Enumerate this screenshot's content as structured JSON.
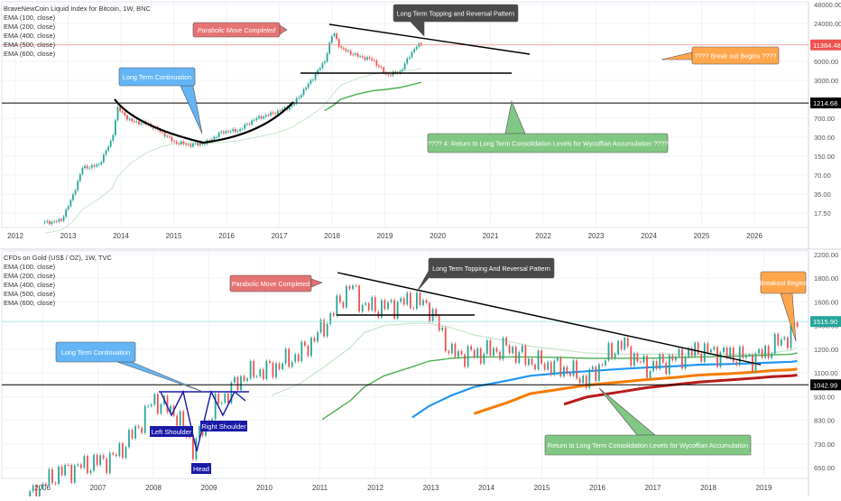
{
  "charts": [
    {
      "legend": [
        "BraveNewCoin Liquid Index for Bitcoin, 1W, BNC",
        "EMA (100, close)",
        "EMA (200, close)",
        "EMA (400, close)",
        "EMA (500, close)",
        "EMA (600, close)"
      ],
      "y_ticks": [
        "48000.00",
        "24000.00",
        "12000.00",
        "6000.00",
        "3000.00",
        "1500.00",
        "700.00",
        "300.00",
        "150.00",
        "70.00",
        "35.00",
        "17.50"
      ],
      "x_ticks": [
        "2012",
        "2013",
        "2014",
        "2015",
        "2016",
        "2017",
        "2018",
        "2019",
        "2020",
        "2021",
        "2022",
        "2023",
        "2024",
        "2025",
        "2026"
      ],
      "price_labels": [
        "11384.48",
        "1214.68"
      ],
      "annotations": {
        "parabolic": "Parabolic Move Completed",
        "topping": "Long Term Topping and Reversal Pattern",
        "continuation": "Long Term Continuation",
        "breakout": "???? Break out Begins ????",
        "return": "???? 4: Return to Long Term Consolidation Levels for Wycoffian Accumulation ????"
      }
    },
    {
      "legend": [
        "CFDs on Gold (US$ / OZ), 1W, TVC",
        "EMA (100, close)",
        "EMA (200, close)",
        "EMA (400, close)",
        "EMA (500, close)",
        "EMA (600, close)"
      ],
      "y_ticks": [
        "2200.00",
        "1800.00",
        "1600.00",
        "1400.00",
        "1200.00",
        "1100.00",
        "930.00",
        "830.00",
        "730.00",
        "650.00"
      ],
      "x_ticks": [
        "2006",
        "2007",
        "2008",
        "2009",
        "2010",
        "2011",
        "2012",
        "2013",
        "2014",
        "2015",
        "2016",
        "2017",
        "2018",
        "2019"
      ],
      "price_labels": [
        "1515.90",
        "1042.99"
      ],
      "annotations": {
        "parabolic": "Parabolic Move Completed",
        "topping": "Long Term Topping And Reversal Pattern",
        "continuation": "Long Term Continuation",
        "breakout": "Breakout Begins",
        "return": "Return to Long Term Consolidation Levels for Wycoffian Accumulation",
        "left_shoulder": "Left Shoulder",
        "head": "Head",
        "right_shoulder": "Right Shoulder"
      }
    }
  ],
  "colors": {
    "candle_up": "#26a69a",
    "candle_down": "#ef5350",
    "ema_light": "#c8e6c9",
    "ema_green": "#4caf50",
    "ema_blue": "#2196f3",
    "ema_orange": "#f57c00",
    "ema_red": "#b71c1c",
    "box_red": "#e57373",
    "box_dark": "#4a4a4a",
    "box_blue": "#64b5f6",
    "box_orange": "#ffa64d",
    "box_green": "#81c784",
    "pattern_blue": "#1a1aa6"
  },
  "chart_data": [
    {
      "type": "line",
      "title": "BraveNewCoin Liquid Index for Bitcoin, 1W, BNC",
      "y_scale": "log",
      "ylim": [
        10,
        60000
      ],
      "xlim": [
        2011.8,
        2026.8
      ],
      "x": [
        2012.6,
        2012.9,
        2013.1,
        2013.3,
        2013.6,
        2013.85,
        2013.95,
        2014.2,
        2014.5,
        2014.8,
        2015.0,
        2015.3,
        2015.6,
        2015.9,
        2016.2,
        2016.5,
        2016.9,
        2017.2,
        2017.5,
        2017.8,
        2017.96,
        2018.1,
        2018.4,
        2018.7,
        2018.95,
        2019.2,
        2019.5,
        2019.6
      ],
      "series": [
        {
          "name": "BraveNewCoin Liquid Index for Bitcoin, 1W, BNC",
          "values": [
            12,
            13,
            30,
            100,
            110,
            300,
            1000,
            600,
            550,
            380,
            270,
            240,
            260,
            400,
            420,
            650,
            850,
            1100,
            2500,
            6000,
            19000,
            10000,
            7500,
            6400,
            3600,
            4000,
            11000,
            11384
          ]
        },
        {
          "name": "EMA (100, close)",
          "values": [
            8,
            9,
            12,
            20,
            30,
            45,
            70,
            120,
            180,
            230,
            250,
            255,
            255,
            265,
            285,
            320,
            380,
            480,
            700,
            1100,
            1700,
            2400,
            3100,
            3700,
            4000,
            4100,
            4400,
            4600
          ]
        },
        {
          "name": "EMA (200, close)",
          "values": [
            null,
            null,
            null,
            null,
            null,
            null,
            null,
            null,
            null,
            null,
            null,
            null,
            null,
            null,
            null,
            null,
            null,
            null,
            null,
            900,
            1100,
            1400,
            1700,
            1950,
            2050,
            2200,
            2550,
            2700
          ]
        }
      ],
      "horizontal_levels": [
        11384.48,
        1214.68
      ]
    },
    {
      "type": "line",
      "title": "CFDs on Gold (US$ / OZ), 1W, TVC",
      "y_scale": "log",
      "ylim": [
        600,
        2300
      ],
      "xlim": [
        2005.5,
        2019.85
      ],
      "x": [
        2006.0,
        2006.5,
        2007.0,
        2007.5,
        2007.9,
        2008.2,
        2008.6,
        2008.9,
        2009.3,
        2009.8,
        2010.3,
        2010.8,
        2011.2,
        2011.7,
        2011.95,
        2012.3,
        2012.8,
        2013.1,
        2013.5,
        2013.9,
        2014.5,
        2014.9,
        2015.5,
        2015.9,
        2016.5,
        2016.95,
        2017.5,
        2017.9,
        2018.5,
        2018.9,
        2019.2,
        2019.55,
        2019.65
      ],
      "series": [
        {
          "name": "CFDs on Gold (US$ / OZ), 1W, TVC",
          "values": [
            540,
            620,
            650,
            680,
            800,
            960,
            880,
            720,
            920,
            1100,
            1150,
            1250,
            1450,
            1880,
            1650,
            1650,
            1720,
            1660,
            1250,
            1250,
            1300,
            1200,
            1150,
            1070,
            1340,
            1150,
            1220,
            1280,
            1240,
            1220,
            1300,
            1420,
            1515
          ]
        },
        {
          "name": "EMA (100, close)",
          "values": [
            null,
            null,
            null,
            null,
            null,
            null,
            null,
            null,
            null,
            null,
            980,
            1050,
            1150,
            1300,
            1420,
            1480,
            1500,
            1500,
            1460,
            1400,
            1350,
            1310,
            1280,
            1260,
            1250,
            1250,
            1250,
            1250,
            1250,
            1250,
            1260,
            1280,
            1300
          ]
        },
        {
          "name": "EMA (200, close)",
          "values": [
            null,
            null,
            null,
            null,
            null,
            null,
            null,
            null,
            null,
            null,
            null,
            null,
            850,
            950,
            1030,
            1100,
            1160,
            1200,
            1220,
            1230,
            1230,
            1230,
            1225,
            1220,
            1220,
            1220,
            1225,
            1230,
            1235,
            1240,
            1245,
            1250,
            1260
          ]
        },
        {
          "name": "EMA (400, close)",
          "values": [
            null,
            null,
            null,
            null,
            null,
            null,
            null,
            null,
            null,
            null,
            null,
            null,
            null,
            null,
            null,
            null,
            860,
            920,
            980,
            1030,
            1070,
            1100,
            1120,
            1130,
            1145,
            1155,
            1165,
            1175,
            1180,
            1185,
            1190,
            1195,
            1200
          ]
        },
        {
          "name": "EMA (500, close)",
          "values": [
            null,
            null,
            null,
            null,
            null,
            null,
            null,
            null,
            null,
            null,
            null,
            null,
            null,
            null,
            null,
            null,
            null,
            null,
            null,
            880,
            940,
            990,
            1020,
            1040,
            1060,
            1075,
            1090,
            1105,
            1115,
            1125,
            1135,
            1140,
            1145
          ]
        },
        {
          "name": "EMA (600, close)",
          "values": [
            null,
            null,
            null,
            null,
            null,
            null,
            null,
            null,
            null,
            null,
            null,
            null,
            null,
            null,
            null,
            null,
            null,
            null,
            null,
            null,
            null,
            null,
            930,
            970,
            1000,
            1025,
            1045,
            1060,
            1075,
            1085,
            1095,
            1100,
            1105
          ]
        }
      ],
      "horizontal_levels": [
        1515.9,
        1042.99
      ]
    }
  ]
}
